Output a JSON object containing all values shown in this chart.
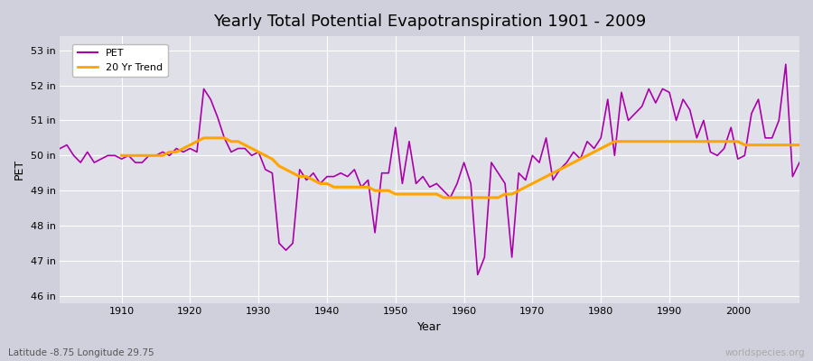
{
  "title": "Yearly Total Potential Evapotranspiration 1901 - 2009",
  "xlabel": "Year",
  "ylabel": "PET",
  "footnote_left": "Latitude -8.75 Longitude 29.75",
  "footnote_right": "worldspecies.org",
  "pet_color": "#aa00aa",
  "trend_color": "#ffa500",
  "background_color": "#e0e0e8",
  "fig_background": "#d0d0dc",
  "ylim": [
    45.8,
    53.4
  ],
  "ytick_labels": [
    "46 in",
    "47 in",
    "48 in",
    "49 in",
    "50 in",
    "51 in",
    "52 in",
    "53 in"
  ],
  "ytick_values": [
    46,
    47,
    48,
    49,
    50,
    51,
    52,
    53
  ],
  "years": [
    1901,
    1902,
    1903,
    1904,
    1905,
    1906,
    1907,
    1908,
    1909,
    1910,
    1911,
    1912,
    1913,
    1914,
    1915,
    1916,
    1917,
    1918,
    1919,
    1920,
    1921,
    1922,
    1923,
    1924,
    1925,
    1926,
    1927,
    1928,
    1929,
    1930,
    1931,
    1932,
    1933,
    1934,
    1935,
    1936,
    1937,
    1938,
    1939,
    1940,
    1941,
    1942,
    1943,
    1944,
    1945,
    1946,
    1947,
    1948,
    1949,
    1950,
    1951,
    1952,
    1953,
    1954,
    1955,
    1956,
    1957,
    1958,
    1959,
    1960,
    1961,
    1962,
    1963,
    1964,
    1965,
    1966,
    1967,
    1968,
    1969,
    1970,
    1971,
    1972,
    1973,
    1974,
    1975,
    1976,
    1977,
    1978,
    1979,
    1980,
    1981,
    1982,
    1983,
    1984,
    1985,
    1986,
    1987,
    1988,
    1989,
    1990,
    1991,
    1992,
    1993,
    1994,
    1995,
    1996,
    1997,
    1998,
    1999,
    2000,
    2001,
    2002,
    2003,
    2004,
    2005,
    2006,
    2007,
    2008,
    2009
  ],
  "pet_values": [
    50.2,
    50.3,
    50.0,
    49.8,
    50.1,
    49.8,
    49.9,
    50.0,
    50.0,
    49.9,
    50.0,
    49.8,
    49.8,
    50.0,
    50.0,
    50.1,
    50.0,
    50.2,
    50.1,
    50.2,
    50.1,
    51.9,
    51.6,
    51.1,
    50.5,
    50.1,
    50.2,
    50.2,
    50.0,
    50.1,
    49.6,
    49.5,
    47.5,
    47.3,
    47.5,
    49.6,
    49.3,
    49.5,
    49.2,
    49.4,
    49.4,
    49.5,
    49.4,
    49.6,
    49.1,
    49.3,
    47.8,
    49.5,
    49.5,
    50.8,
    49.2,
    50.4,
    49.2,
    49.4,
    49.1,
    49.2,
    49.0,
    48.8,
    49.2,
    49.8,
    49.2,
    46.6,
    47.1,
    49.8,
    49.5,
    49.2,
    47.1,
    49.5,
    49.3,
    50.0,
    49.8,
    50.5,
    49.3,
    49.6,
    49.8,
    50.1,
    49.9,
    50.4,
    50.2,
    50.5,
    51.6,
    50.0,
    51.8,
    51.0,
    51.2,
    51.4,
    51.9,
    51.5,
    51.9,
    51.8,
    51.0,
    51.6,
    51.3,
    50.5,
    51.0,
    50.1,
    50.0,
    50.2,
    50.8,
    49.9,
    50.0,
    51.2,
    51.6,
    50.5,
    50.5,
    51.0,
    52.6,
    49.4,
    49.8
  ],
  "trend_values": [
    null,
    null,
    null,
    null,
    null,
    null,
    null,
    null,
    null,
    50.0,
    50.0,
    50.0,
    50.0,
    50.0,
    50.0,
    50.0,
    50.1,
    50.1,
    50.2,
    50.3,
    50.4,
    50.5,
    50.5,
    50.5,
    50.5,
    50.4,
    50.4,
    50.3,
    50.2,
    50.1,
    50.0,
    49.9,
    49.7,
    49.6,
    49.5,
    49.4,
    49.4,
    49.3,
    49.2,
    49.2,
    49.1,
    49.1,
    49.1,
    49.1,
    49.1,
    49.1,
    49.0,
    49.0,
    49.0,
    48.9,
    48.9,
    48.9,
    48.9,
    48.9,
    48.9,
    48.9,
    48.8,
    48.8,
    48.8,
    48.8,
    48.8,
    48.8,
    48.8,
    48.8,
    48.8,
    48.9,
    48.9,
    49.0,
    49.1,
    49.2,
    49.3,
    49.4,
    49.5,
    49.6,
    49.7,
    49.8,
    49.9,
    50.0,
    50.1,
    50.2,
    50.3,
    50.4,
    50.4,
    50.4,
    50.4,
    50.4,
    50.4,
    50.4,
    50.4,
    50.4,
    50.4,
    50.4,
    50.4,
    50.4,
    50.4,
    50.4,
    50.4,
    50.4,
    50.4,
    50.4,
    50.3,
    50.3,
    50.3,
    50.3,
    50.3,
    50.3,
    50.3,
    50.3,
    50.3
  ]
}
